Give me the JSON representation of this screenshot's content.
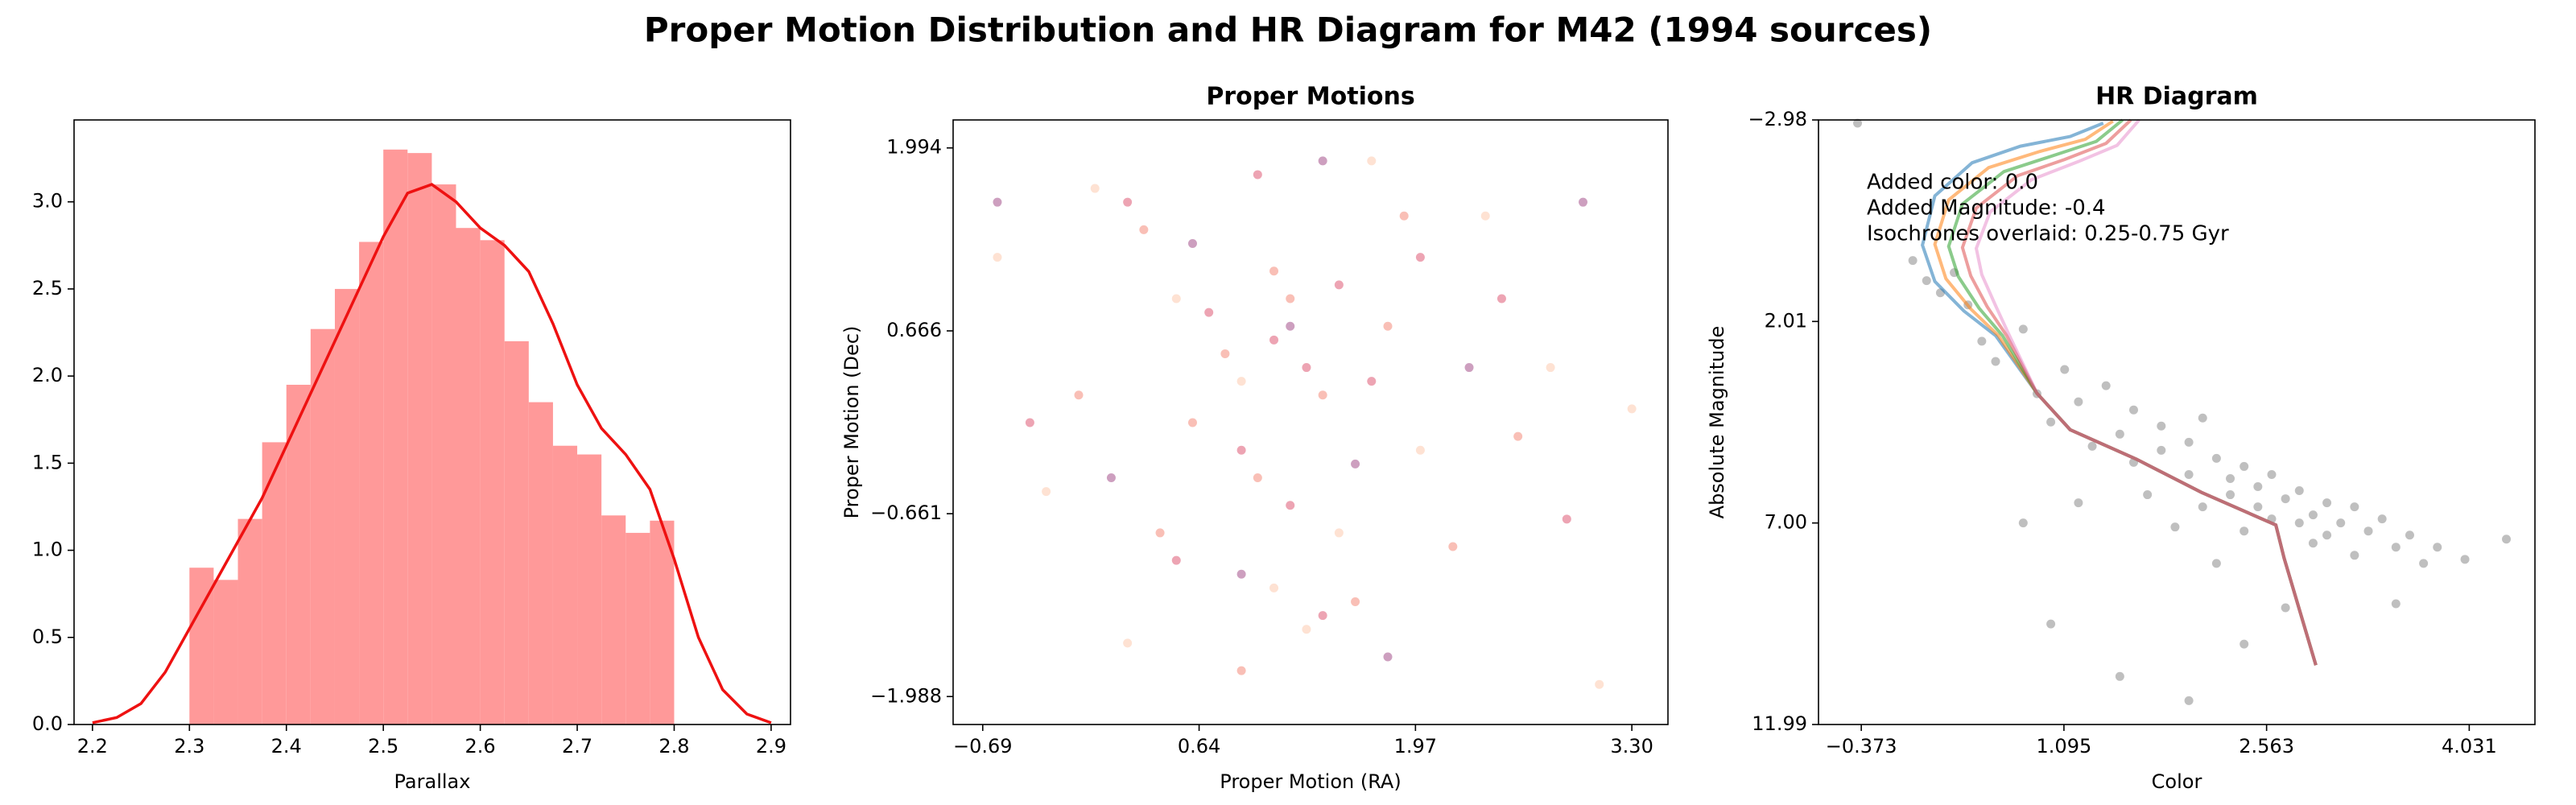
{
  "title": "Proper Motion Distribution and HR Diagram for M42 (1994 sources)",
  "chart_data": [
    {
      "type": "histogram",
      "xlabel": "Parallax",
      "color": "#ff9999",
      "bins": [
        2.3,
        2.325,
        2.35,
        2.375,
        2.4,
        2.425,
        2.45,
        2.475,
        2.5,
        2.525,
        2.55,
        2.575,
        2.6,
        2.625,
        2.65,
        2.675,
        2.7,
        2.725,
        2.75,
        2.775,
        2.8
      ],
      "values": [
        0.9,
        0.83,
        1.18,
        1.62,
        1.95,
        2.27,
        2.5,
        2.77,
        3.3,
        3.28,
        3.1,
        2.85,
        2.78,
        2.2,
        1.85,
        1.6,
        1.55,
        1.2,
        1.1,
        1.17
      ],
      "kde": {
        "color": "#ee1111",
        "x": [
          2.2,
          2.225,
          2.25,
          2.275,
          2.3,
          2.325,
          2.35,
          2.375,
          2.4,
          2.425,
          2.45,
          2.475,
          2.5,
          2.525,
          2.55,
          2.575,
          2.6,
          2.625,
          2.65,
          2.675,
          2.7,
          2.725,
          2.75,
          2.775,
          2.8,
          2.825,
          2.85,
          2.875,
          2.9
        ],
        "values": [
          0.01,
          0.04,
          0.12,
          0.3,
          0.55,
          0.8,
          1.05,
          1.3,
          1.6,
          1.9,
          2.2,
          2.5,
          2.8,
          3.05,
          3.1,
          3.0,
          2.85,
          2.75,
          2.6,
          2.3,
          1.95,
          1.7,
          1.55,
          1.35,
          0.95,
          0.5,
          0.2,
          0.06,
          0.01
        ]
      },
      "xlim": [
        2.181,
        2.92
      ],
      "xticks": [
        2.2,
        2.3,
        2.4,
        2.5,
        2.6,
        2.7,
        2.8,
        2.9
      ],
      "ylim": [
        0,
        3.47
      ],
      "yticks": [
        {
          "value": 0,
          "label": "0.0"
        },
        {
          "value": 0.5,
          "label": "0.5"
        },
        {
          "value": 1,
          "label": "1.0"
        },
        {
          "value": 1.5,
          "label": "1.5"
        },
        {
          "value": 2,
          "label": "2.0"
        },
        {
          "value": 2.5,
          "label": "2.5"
        },
        {
          "value": 3,
          "label": "3.0"
        }
      ]
    },
    {
      "type": "scatter",
      "title": "Proper Motions",
      "xlabel": "Proper Motion (RA)",
      "ylabel": "Proper Motion (Dec)",
      "alpha": 0.5,
      "series": [
        {
          "color": "#fdc5a8",
          "x": [
            -0.6,
            0.2,
            0.9,
            1.5,
            2.4,
            3.1,
            1.1,
            0.5,
            2.0,
            2.8,
            -0.3,
            1.7,
            0.0,
            3.3,
            1.3
          ],
          "values": [
            1.2,
            -1.6,
            0.3,
            -0.8,
            1.5,
            -1.9,
            -1.2,
            0.9,
            -0.2,
            0.4,
            -0.5,
            1.9,
            1.7,
            0.1,
            -1.5
          ]
        },
        {
          "color": "#f4806e",
          "x": [
            0.8,
            1.2,
            1.4,
            0.6,
            1.0,
            1.8,
            2.2,
            0.3,
            1.6,
            -0.1,
            2.6,
            1.1,
            0.9,
            1.9,
            0.4
          ],
          "values": [
            0.5,
            0.9,
            0.2,
            0.0,
            -0.4,
            0.7,
            -0.9,
            1.4,
            -1.3,
            0.2,
            -0.1,
            1.1,
            -1.8,
            1.5,
            -0.8
          ]
        },
        {
          "color": "#dc4a68",
          "x": [
            1.1,
            1.3,
            0.7,
            1.5,
            0.9,
            1.7,
            2.0,
            0.5,
            1.2,
            2.5,
            -0.4,
            1.4,
            0.2,
            1.0,
            2.9
          ],
          "values": [
            0.6,
            0.4,
            0.8,
            1.0,
            -0.2,
            0.3,
            1.2,
            -1.0,
            -0.6,
            0.9,
            0.0,
            -1.4,
            1.6,
            1.8,
            -0.7
          ]
        },
        {
          "color": "#9b3f7f",
          "x": [
            1.2,
            0.6,
            1.6,
            -0.6,
            2.3,
            0.9,
            1.4,
            3.0,
            0.1,
            1.8
          ],
          "values": [
            0.7,
            1.3,
            -0.3,
            1.6,
            0.4,
            -1.1,
            1.9,
            1.6,
            -0.4,
            -1.7
          ]
        }
      ],
      "xlim": [
        -0.872,
        3.522
      ],
      "xticks": [
        {
          "value": -0.69,
          "label": "−0.69"
        },
        {
          "value": 0.64,
          "label": "0.64"
        },
        {
          "value": 1.97,
          "label": "1.97"
        },
        {
          "value": 3.3,
          "label": "3.30"
        }
      ],
      "ylim": [
        -2.191,
        2.197
      ],
      "yticks": [
        {
          "value": -1.988,
          "label": "−1.988"
        },
        {
          "value": -0.661,
          "label": "−0.661"
        },
        {
          "value": 0.666,
          "label": "0.666"
        },
        {
          "value": 1.994,
          "label": "1.994"
        }
      ]
    },
    {
      "type": "scatter",
      "title": "HR Diagram",
      "xlabel": "Color",
      "ylabel": "Absolute Magnitude",
      "annotations": [
        "Added color: 0.0",
        "Added Magnitude: -0.4",
        "Isochrones overlaid: 0.25-0.75 Gyr"
      ],
      "series": [
        {
          "color": "#000000",
          "alpha": 0.25,
          "x": [
            0.1,
            0.2,
            0.3,
            0.4,
            0.5,
            0.6,
            0.8,
            0.9,
            1.0,
            1.1,
            1.2,
            1.3,
            1.4,
            1.5,
            1.6,
            1.6,
            1.7,
            1.8,
            1.8,
            1.9,
            2.0,
            2.0,
            2.1,
            2.1,
            2.2,
            2.2,
            2.3,
            2.3,
            2.4,
            2.4,
            2.5,
            2.5,
            2.6,
            2.6,
            2.7,
            2.7,
            2.8,
            2.8,
            2.9,
            2.9,
            3.0,
            3.0,
            3.1,
            3.2,
            3.2,
            3.3,
            3.4,
            3.5,
            3.6,
            3.7,
            3.8,
            4.0,
            4.3,
            1.0,
            1.5,
            2.0,
            0.8,
            3.5,
            1.2,
            -0.4,
            0.0,
            2.4
          ],
          "values": [
            1.0,
            1.3,
            0.8,
            1.6,
            2.5,
            3.0,
            2.2,
            3.8,
            4.5,
            3.2,
            4.0,
            5.1,
            3.6,
            4.8,
            5.5,
            4.2,
            6.3,
            4.6,
            5.2,
            7.1,
            5.0,
            5.8,
            4.4,
            6.6,
            5.4,
            8.0,
            5.9,
            6.3,
            5.6,
            7.2,
            6.1,
            6.6,
            5.8,
            6.9,
            6.4,
            9.1,
            6.2,
            7.0,
            6.8,
            7.5,
            6.5,
            7.3,
            7.0,
            6.6,
            7.8,
            7.2,
            6.9,
            7.6,
            7.3,
            8.0,
            7.6,
            7.9,
            7.4,
            9.5,
            10.8,
            11.4,
            7.0,
            9.0,
            6.5,
            -2.9,
            0.5,
            10.0
          ]
        },
        {
          "mode": "line",
          "color": "#1f77b4",
          "alpha": 0.55,
          "x": [
            2.92,
            2.69,
            2.63,
            2.09,
            1.62,
            1.14,
            0.9,
            0.6,
            0.37,
            0.16,
            0.07,
            0.16,
            0.43,
            0.78,
            1.14,
            1.38
          ],
          "values": [
            10.52,
            7.87,
            7.05,
            6.24,
            5.42,
            4.69,
            3.79,
            2.36,
            1.75,
            1.02,
            0.12,
            -1.1,
            -1.92,
            -2.33,
            -2.57,
            -2.9
          ]
        },
        {
          "mode": "line",
          "color": "#ff7f0e",
          "alpha": 0.55,
          "x": [
            2.92,
            2.69,
            2.63,
            2.09,
            1.62,
            1.14,
            0.9,
            0.62,
            0.42,
            0.24,
            0.16,
            0.26,
            0.55,
            0.92,
            1.25,
            1.45
          ],
          "values": [
            10.52,
            7.87,
            7.05,
            6.24,
            5.42,
            4.69,
            3.79,
            2.36,
            1.7,
            0.95,
            0.1,
            -1.0,
            -1.8,
            -2.2,
            -2.5,
            -2.95
          ]
        },
        {
          "mode": "line",
          "color": "#2ca02c",
          "alpha": 0.55,
          "x": [
            2.92,
            2.69,
            2.63,
            2.09,
            1.62,
            1.14,
            0.9,
            0.65,
            0.48,
            0.33,
            0.26,
            0.36,
            0.66,
            1.02,
            1.33,
            1.52
          ],
          "values": [
            10.52,
            7.87,
            7.05,
            6.24,
            5.42,
            4.69,
            3.79,
            2.36,
            1.68,
            0.9,
            0.15,
            -0.9,
            -1.7,
            -2.1,
            -2.45,
            -2.98
          ]
        },
        {
          "mode": "line",
          "color": "#d62728",
          "alpha": 0.45,
          "x": [
            2.92,
            2.69,
            2.63,
            2.09,
            1.62,
            1.14,
            0.9,
            0.68,
            0.54,
            0.42,
            0.36,
            0.46,
            0.76,
            1.1,
            1.4,
            1.58
          ],
          "values": [
            10.52,
            7.87,
            7.05,
            6.24,
            5.42,
            4.69,
            3.79,
            2.36,
            1.65,
            0.88,
            0.18,
            -0.8,
            -1.6,
            -2.0,
            -2.4,
            -2.98
          ]
        },
        {
          "mode": "line",
          "color": "#e377c2",
          "alpha": 0.45,
          "x": [
            2.92,
            2.69,
            2.63,
            2.09,
            1.62,
            1.14,
            0.9,
            0.7,
            0.6,
            0.5,
            0.46,
            0.56,
            0.86,
            1.2,
            1.48,
            1.64
          ],
          "values": [
            10.52,
            7.87,
            7.05,
            6.24,
            5.42,
            4.69,
            3.79,
            2.36,
            1.62,
            0.85,
            0.2,
            -0.7,
            -1.5,
            -1.95,
            -2.35,
            -2.98
          ]
        }
      ],
      "xlim": [
        -0.683,
        4.507
      ],
      "xticks": [
        {
          "value": -0.373,
          "label": "−0.373"
        },
        {
          "value": 1.095,
          "label": "1.095"
        },
        {
          "value": 2.563,
          "label": "2.563"
        },
        {
          "value": 4.031,
          "label": "4.031"
        }
      ],
      "ylim": [
        11.99,
        -2.98
      ],
      "yticks": [
        {
          "value": -2.98,
          "label": "−2.98"
        },
        {
          "value": 2.01,
          "label": "2.01"
        },
        {
          "value": 7.0,
          "label": "7.00"
        },
        {
          "value": 11.99,
          "label": "11.99"
        }
      ]
    }
  ]
}
